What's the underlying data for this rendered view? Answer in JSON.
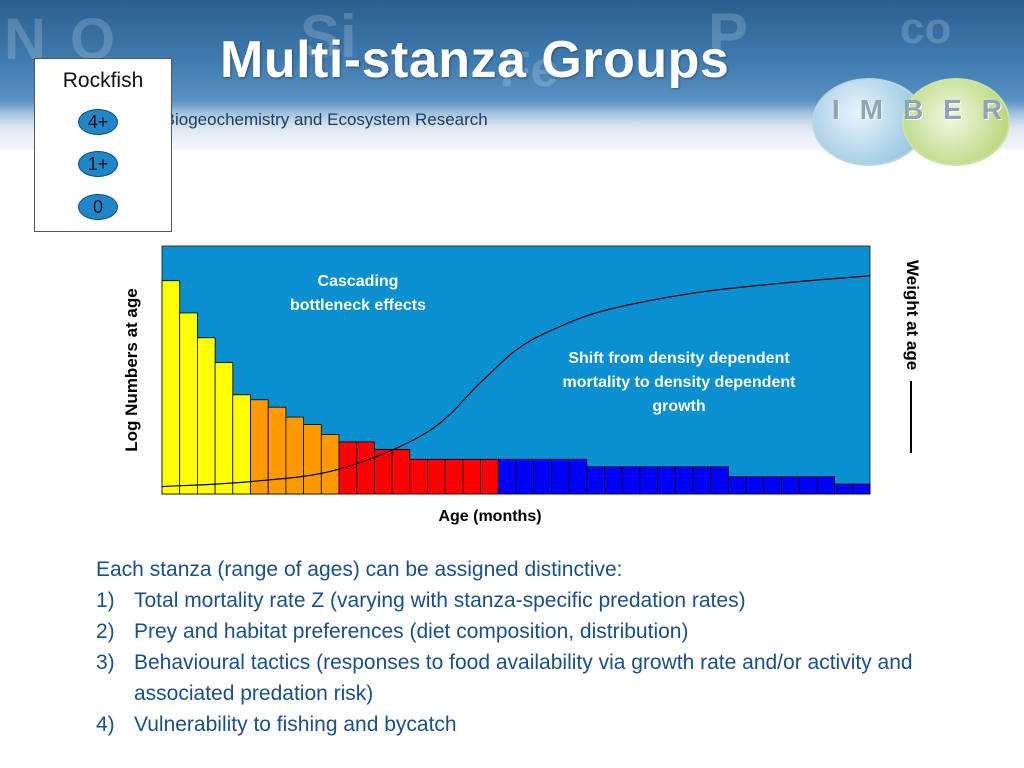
{
  "header": {
    "title": "Multi-stanza Groups",
    "subtitle_fragment": "ne Biogeochemistry and Ecosystem Research",
    "background_symbols": [
      "N",
      "O",
      "Si",
      "Fe",
      "P",
      "co"
    ],
    "logo_letters": [
      "I",
      "M",
      "B",
      "E",
      "R"
    ]
  },
  "rockfish_box": {
    "title": "Rockfish",
    "stanzas": [
      "4+",
      "1+",
      "0"
    ]
  },
  "annotations": {
    "cascading": [
      "Cascading",
      "bottleneck effects"
    ],
    "shift": [
      "Shift from density dependent",
      "mortality to  density dependent",
      "growth"
    ]
  },
  "chart_data": {
    "type": "bar",
    "xlabel": "Age (months)",
    "ylabel": "Log Numbers at age",
    "y2label": "Weight at age",
    "background_color": "#0a8fd0",
    "stanza_colors": {
      "yellow": "#ffff00",
      "orange": "#ff9900",
      "red": "#ff0000",
      "blue": "#0000ff"
    },
    "bar_colors": [
      "yellow",
      "yellow",
      "yellow",
      "yellow",
      "yellow",
      "orange",
      "orange",
      "orange",
      "orange",
      "orange",
      "red",
      "red",
      "red",
      "red",
      "red",
      "red",
      "red",
      "red",
      "red",
      "blue",
      "blue",
      "blue",
      "blue",
      "blue",
      "blue",
      "blue",
      "blue",
      "blue",
      "blue",
      "blue",
      "blue",
      "blue",
      "blue",
      "blue",
      "blue",
      "blue",
      "blue",
      "blue",
      "blue",
      "blue"
    ],
    "values": [
      86,
      73,
      63,
      53,
      40,
      38,
      35,
      31,
      28,
      24,
      21,
      21,
      18,
      18,
      14,
      14,
      14,
      14,
      14,
      14,
      14,
      14,
      14,
      14,
      11,
      11,
      11,
      11,
      11,
      11,
      11,
      11,
      7,
      7,
      7,
      7,
      7,
      7,
      4,
      4
    ],
    "ylim": [
      0,
      100
    ],
    "weight_curve": {
      "x": [
        0,
        5,
        10,
        15,
        18,
        20,
        22,
        25,
        30,
        35,
        40
      ],
      "y": [
        3,
        5,
        10,
        25,
        45,
        58,
        66,
        74,
        81,
        85,
        88
      ]
    }
  },
  "body": {
    "intro": "Each stanza (range of ages) can be assigned distinctive:",
    "items": [
      {
        "num": "1)",
        "text": "Total mortality rate Z (varying with stanza-specific predation rates)"
      },
      {
        "num": "2)",
        "text": "Prey and habitat preferences (diet composition, distribution)"
      },
      {
        "num": "3)",
        "text": "Behavioural tactics (responses to food availability via growth rate and/or activity and associated predation risk)"
      },
      {
        "num": "4)",
        "text": "Vulnerability to fishing and bycatch"
      }
    ]
  }
}
